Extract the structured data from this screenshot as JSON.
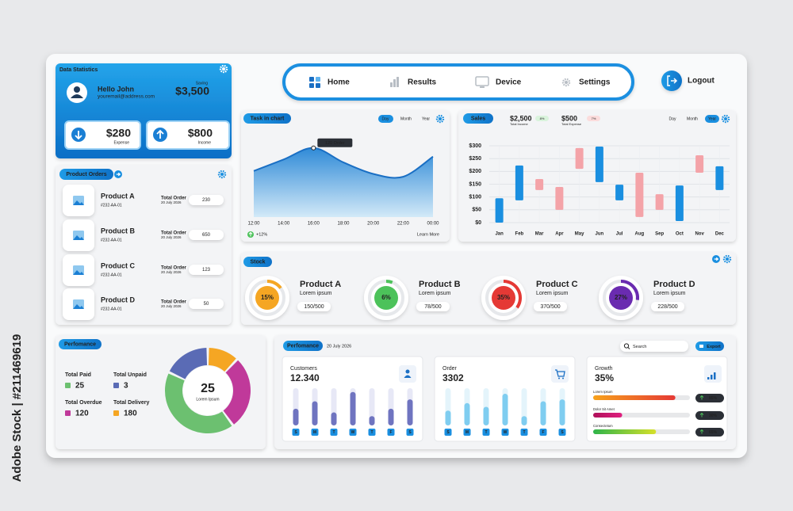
{
  "watermark": "Adobe Stock | #211469619",
  "profile": {
    "title": "Data Statistics",
    "greeting": "Hello John",
    "email": "youremail@address.com",
    "saving_label": "Saving",
    "saving": "$3,500",
    "expense": "$280",
    "expense_label": "Expense",
    "income": "$800",
    "income_label": "Income"
  },
  "nav": {
    "items": [
      "Home",
      "Results",
      "Device",
      "Settings"
    ],
    "logout": "Logout"
  },
  "product_orders": {
    "title": "Product Orders",
    "rows": [
      {
        "name": "Product A",
        "code": "#232-AA-01",
        "label": "Total Order",
        "date": "20 July 2026",
        "total": 230
      },
      {
        "name": "Product B",
        "code": "#232-AA-01",
        "label": "Total Order",
        "date": "20 July 2026",
        "total": 650
      },
      {
        "name": "Product C",
        "code": "#232-AA-01",
        "label": "Total Order",
        "date": "20 July 2026",
        "total": 123
      },
      {
        "name": "Product D",
        "code": "#232-AA-01",
        "label": "Total Order",
        "date": "20 July 2026",
        "total": 50
      }
    ]
  },
  "stock": {
    "title": "Stock",
    "items": [
      {
        "name": "Product A",
        "subtitle": "Lorem ipsum",
        "value": 15,
        "value_label": "15%",
        "count": "150/500",
        "color": "#f5a623"
      },
      {
        "name": "Product B",
        "subtitle": "Lorem ipsum",
        "value": 6,
        "value_label": "6%",
        "count": "78/500",
        "color": "#4cc25a"
      },
      {
        "name": "Product C",
        "subtitle": "Lorem ipsum",
        "value": 35,
        "value_label": "35%",
        "count": "370/500",
        "color": "#e53935"
      },
      {
        "name": "Product D",
        "subtitle": "Lorem ipsum",
        "value": 27,
        "value_label": "27%",
        "count": "228/500",
        "color": "#6a2bb0"
      }
    ]
  },
  "performance": {
    "title": "Perfomance",
    "totals": [
      {
        "label": "Total Paid",
        "value": 25,
        "color": "#6cc070"
      },
      {
        "label": "Total Unpaid",
        "value": 3,
        "color": "#5a6bb5"
      },
      {
        "label": "Total Overdue",
        "value": 120,
        "color": "#c0399a"
      },
      {
        "label": "Total Delivery",
        "value": 180,
        "color": "#f5a623"
      }
    ],
    "center_value": 25,
    "center_label": "Lorem Ipsum"
  },
  "weekly": {
    "title": "Perfomance",
    "date": "20 July 2026",
    "search": "Search",
    "export": "Export",
    "customers_label": "Customers",
    "customers": "12.340",
    "order_label": "Order",
    "order": "3302",
    "growth_label": "Growth",
    "growth": "35%",
    "progress": [
      {
        "label": "Lorem Ipsum",
        "value": 85,
        "value_label": "85%",
        "colors": [
          "#f7a21b",
          "#e53935"
        ]
      },
      {
        "label": "Dolor Sit Amet",
        "value": 30,
        "value_label": "30%",
        "colors": [
          "#b0105a",
          "#e0207f"
        ]
      },
      {
        "label": "Consectetum",
        "value": 65,
        "value_label": "65%",
        "colors": [
          "#2eb44a",
          "#d6e02a"
        ]
      }
    ]
  },
  "chart_data": [
    {
      "type": "area",
      "title": "Task in chart",
      "tabs": [
        "Day",
        "Month",
        "Year"
      ],
      "categories": [
        "12:00",
        "14:00",
        "16:00",
        "18:00",
        "20:00",
        "22:00",
        "00:00"
      ],
      "values": [
        80,
        100,
        120,
        95,
        75,
        70,
        105
      ],
      "ylim": [
        0,
        150
      ],
      "color": "#1a6fc4",
      "annotation": "120 Order",
      "change": "+12%",
      "link": "Learn More"
    },
    {
      "type": "floating-bar",
      "title": "Sales",
      "tabs": [
        "Day",
        "Month",
        "Year"
      ],
      "income": "$2,500",
      "income_label": "Total Income",
      "income_change": "8%",
      "expense": "$500",
      "expense_label": "Total Expense",
      "expense_change": "7%",
      "categories": [
        "Jan",
        "Feb",
        "Mar",
        "Apr",
        "May",
        "Jun",
        "Jul",
        "Aug",
        "Sep",
        "Oct",
        "Nov",
        "Dec"
      ],
      "low": [
        0,
        87,
        127,
        50,
        210,
        158,
        87,
        22,
        50,
        6,
        195,
        127
      ],
      "high": [
        95,
        223,
        170,
        139,
        291,
        297,
        148,
        195,
        111,
        145,
        263,
        220
      ],
      "colors": [
        "#1a8fe0",
        "#1a8fe0",
        "#f4a3a8",
        "#f4a3a8",
        "#f4a3a8",
        "#1a8fe0",
        "#1a8fe0",
        "#f4a3a8",
        "#f4a3a8",
        "#1a8fe0",
        "#f4a3a8",
        "#1a8fe0"
      ],
      "ylim": [
        0,
        300
      ],
      "yticks": [
        {
          "value": 0,
          "label": "$0"
        },
        {
          "value": 50,
          "label": "$50"
        },
        {
          "value": 100,
          "label": "$100"
        },
        {
          "value": 150,
          "label": "$150"
        },
        {
          "value": 200,
          "label": "$200"
        },
        {
          "value": 250,
          "label": "$250"
        },
        {
          "value": 300,
          "label": "$300"
        }
      ],
      "grid": true
    },
    {
      "type": "pie",
      "values": [
        12,
        28,
        42,
        18
      ],
      "colors": [
        "#f5a623",
        "#c0399a",
        "#6cc070",
        "#5a6bb5"
      ]
    },
    {
      "type": "bar",
      "categories": [
        "S",
        "M",
        "T",
        "W",
        "T",
        "F",
        "S"
      ],
      "values": [
        45,
        65,
        35,
        90,
        25,
        45,
        70
      ],
      "ylim": [
        0,
        100
      ],
      "color": "#6f74c0"
    },
    {
      "type": "bar",
      "categories": [
        "S",
        "M",
        "T",
        "W",
        "T",
        "F",
        "S"
      ],
      "values": [
        40,
        60,
        50,
        85,
        25,
        65,
        70
      ],
      "ylim": [
        0,
        100
      ],
      "color": "#7fcdf0"
    }
  ]
}
